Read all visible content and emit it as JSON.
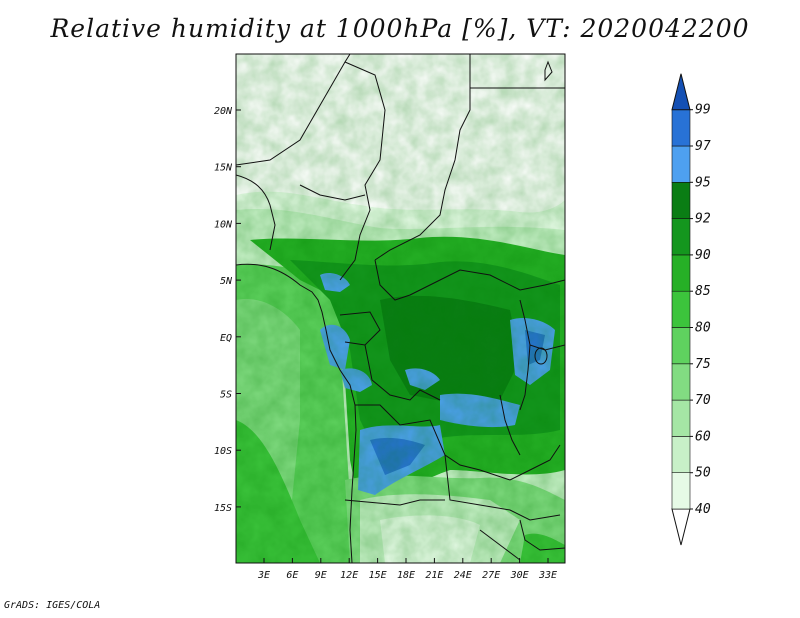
{
  "title": "Relative humidity at 1000hPa [%], VT: 2020042200",
  "footer": "GrADS: IGES/COLA",
  "map": {
    "lat_ticks": [
      "20N",
      "15N",
      "10N",
      "5N",
      "EQ",
      "5S",
      "10S",
      "15S"
    ],
    "lon_ticks": [
      "3E",
      "6E",
      "9E",
      "12E",
      "15E",
      "18E",
      "21E",
      "24E",
      "27E",
      "30E",
      "33E"
    ]
  },
  "colorbar": {
    "levels": [
      "40",
      "50",
      "60",
      "70",
      "75",
      "80",
      "85",
      "90",
      "92",
      "95",
      "97",
      "99"
    ],
    "colors": [
      "#ffffff",
      "#e6fae6",
      "#c8f0c8",
      "#a5e6a5",
      "#82dc82",
      "#5fd25f",
      "#3cc43c",
      "#26b026",
      "#14961e",
      "#0a7d14",
      "#4ea0f0",
      "#2872d6",
      "#1450b4"
    ]
  }
}
